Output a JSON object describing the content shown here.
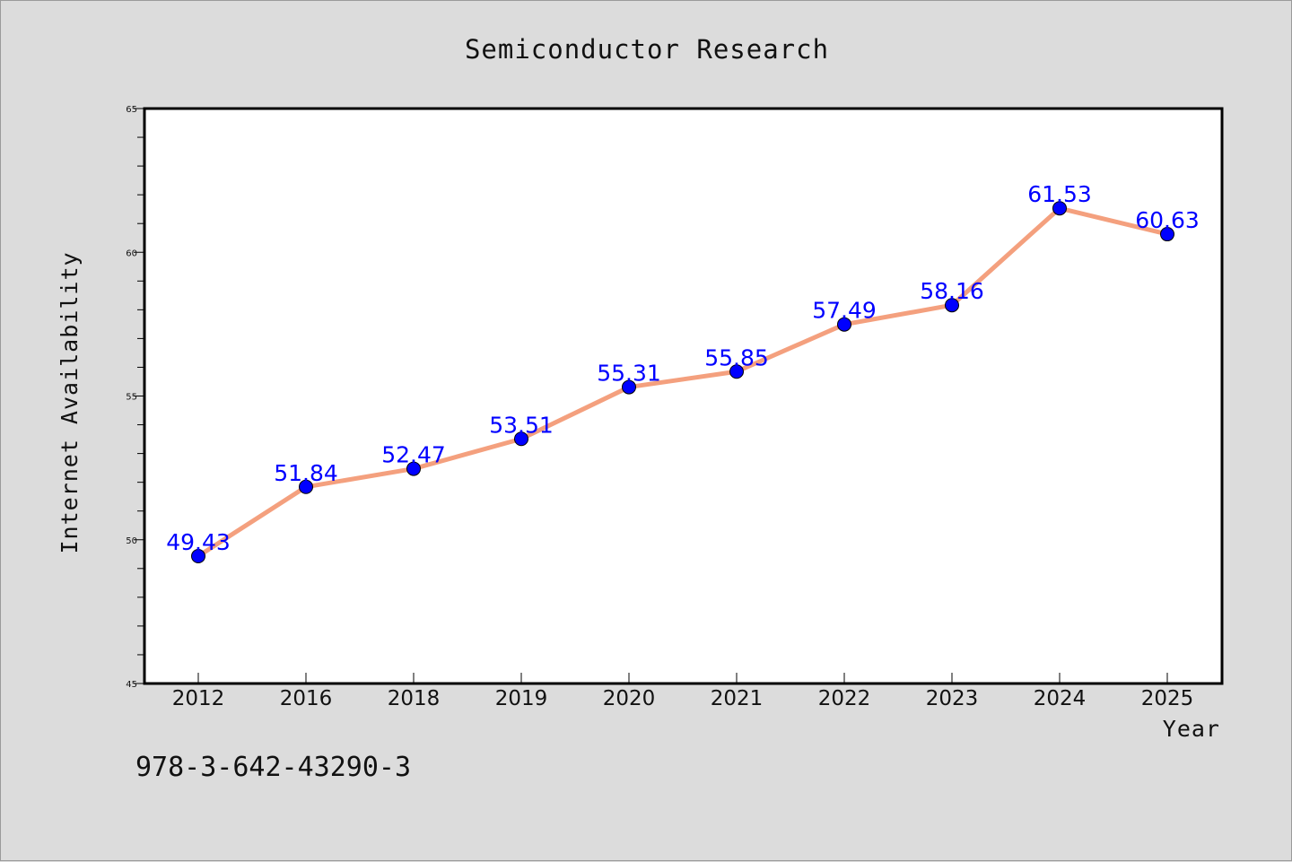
{
  "chart_data": {
    "type": "line",
    "title": "Semiconductor Research",
    "xlabel": "Year",
    "ylabel": "Internet Availability",
    "categories": [
      "2012",
      "2016",
      "2018",
      "2019",
      "2020",
      "2021",
      "2022",
      "2023",
      "2024",
      "2025"
    ],
    "series": [
      {
        "values": [
          49.43,
          51.84,
          52.47,
          53.51,
          55.31,
          55.85,
          57.49,
          58.16,
          61.53,
          60.63
        ],
        "data_labels": [
          "49.43",
          "51.84",
          "52.47",
          "53.51",
          "55.31",
          "55.85",
          "57.49",
          "58.16",
          "61.53",
          "60.63"
        ],
        "line_color": "#f4a07e",
        "marker_color": "#0000ff"
      }
    ],
    "ylim": [
      45,
      65
    ],
    "yticks": [
      "45",
      "50",
      "55",
      "60",
      "65"
    ],
    "grid": false,
    "legend": "none"
  },
  "footer": {
    "isbn": "978-3-642-43290-3"
  }
}
